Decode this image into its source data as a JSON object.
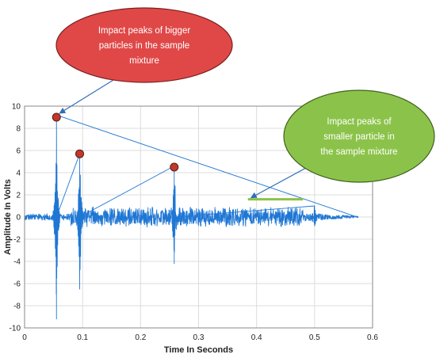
{
  "chart_data": {
    "type": "line",
    "title": "",
    "xlabel": "Time In Seconds",
    "ylabel": "Amplitude In Volts",
    "xlim": [
      0,
      0.6
    ],
    "ylim": [
      -10,
      10
    ],
    "xticks": [
      "0",
      "0.1",
      "0.2",
      "0.3",
      "0.4",
      "0.5",
      "0.6"
    ],
    "yticks": [
      "-10",
      "-8",
      "-6",
      "-4",
      "-2",
      "0",
      "2",
      "4",
      "6",
      "8",
      "10"
    ],
    "grid": true,
    "series": [
      {
        "color": "#1f77d4",
        "signal_span": [
          0.0,
          0.575
        ],
        "baseline_noise": 0.3,
        "dense_noise_span": [
          0.08,
          0.48
        ],
        "dense_noise_amplitude": 1.0,
        "spikes": [
          {
            "x": 0.055,
            "max": 9.2,
            "min": -9.2
          },
          {
            "x": 0.095,
            "max": 5.7,
            "min": -6.5
          },
          {
            "x": 0.258,
            "max": 4.6,
            "min": -4.2
          },
          {
            "x": 0.5,
            "max": 1.0,
            "min": -0.8
          }
        ]
      }
    ],
    "markers": [
      {
        "x": 0.055,
        "y": 9.0
      },
      {
        "x": 0.095,
        "y": 5.7
      },
      {
        "x": 0.258,
        "y": 4.5
      }
    ],
    "bracket": {
      "x_start": 0.385,
      "x_end": 0.48,
      "y": 1.6,
      "color": "#8bc34a"
    },
    "annotations": [
      {
        "text_lines": [
          "Impact peaks of bigger",
          "particles in the sample",
          "mixture"
        ],
        "fill": "#e04848",
        "stroke": "#7a1f1f",
        "pointer_to": {
          "x": 0.055,
          "y": 9.0
        }
      },
      {
        "text_lines": [
          "Impact peaks of",
          "smaller particle in",
          "the sample mixture"
        ],
        "fill": "#8bc34a",
        "stroke": "#3e5f1b",
        "pointer_to": {
          "x": 0.385,
          "y": 1.6
        }
      }
    ]
  }
}
